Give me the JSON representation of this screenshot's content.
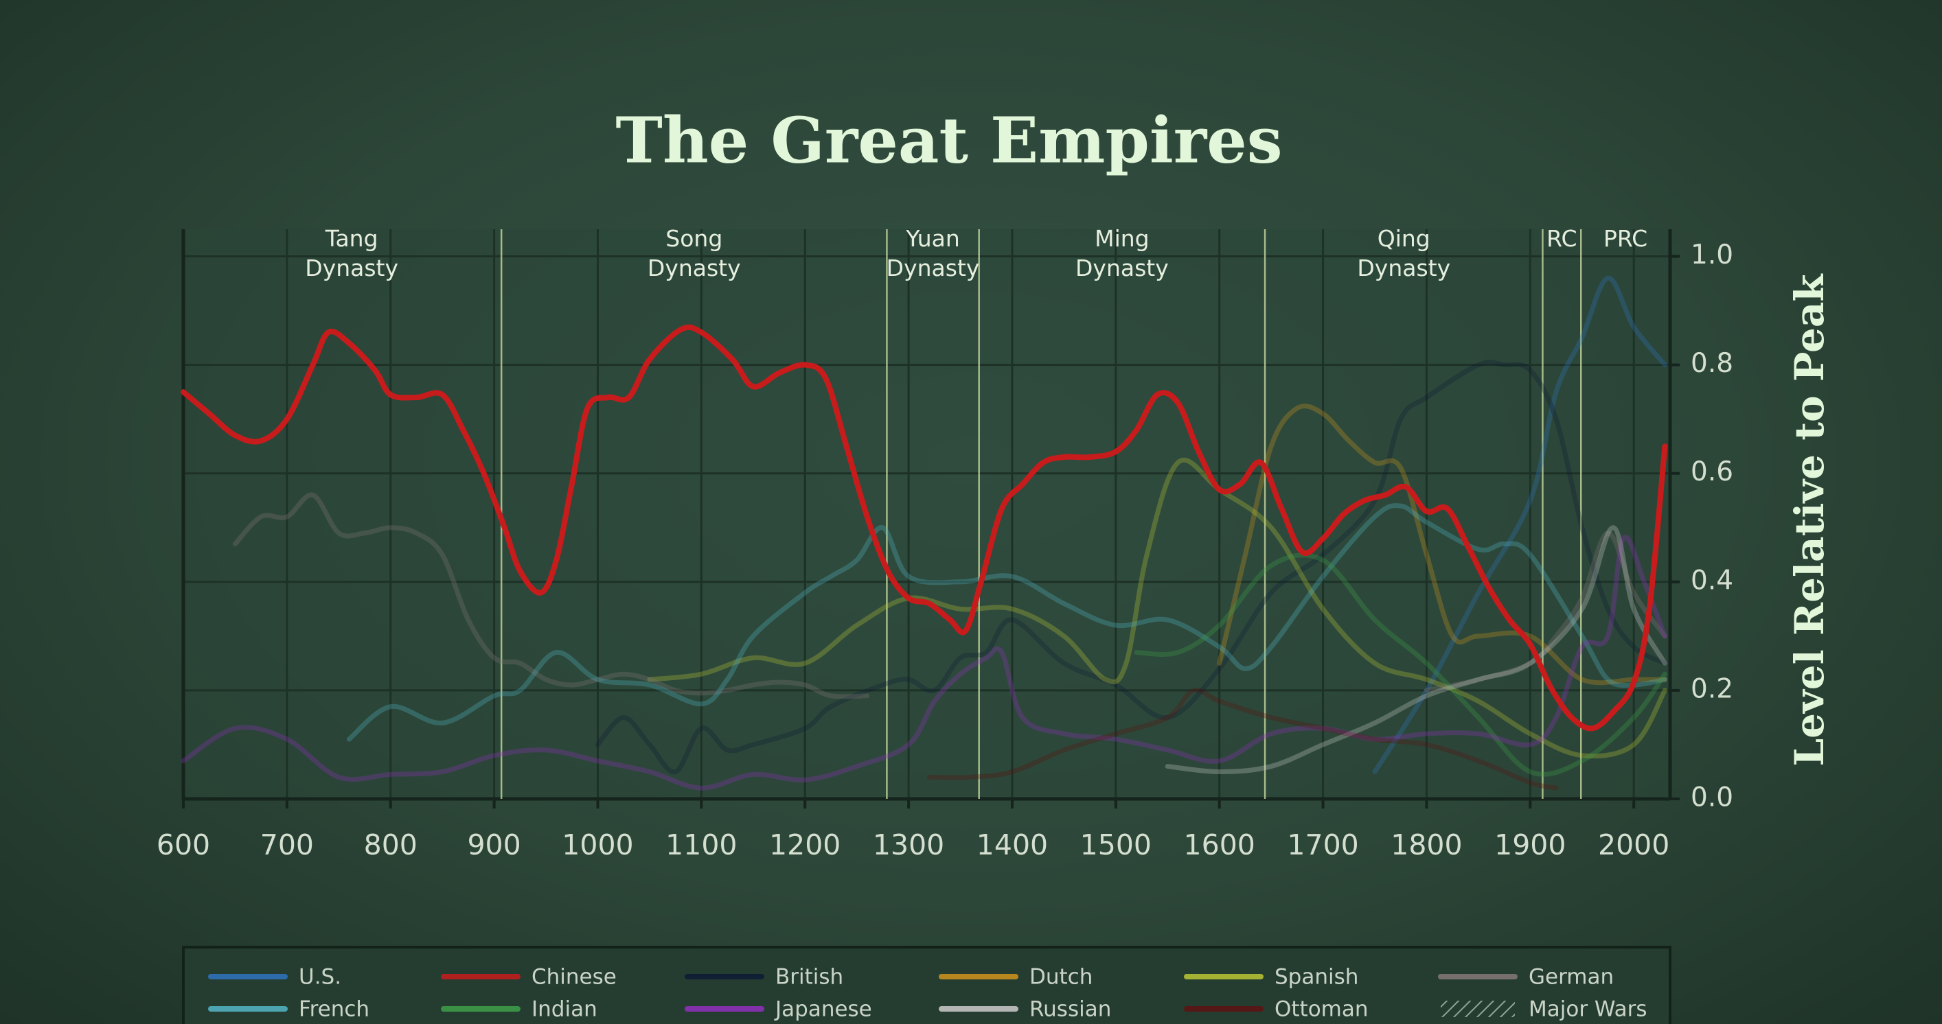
{
  "chart_data": {
    "type": "line",
    "title": "The Great Empires",
    "y_label": "Level Relative to Peak",
    "xlim": [
      600,
      2035
    ],
    "ylim": [
      0,
      1.05
    ],
    "xticks": [
      600,
      700,
      800,
      900,
      1000,
      1100,
      1200,
      1300,
      1400,
      1500,
      1600,
      1700,
      1800,
      1900,
      2000
    ],
    "yticks": [
      {
        "value": 0,
        "label": "0.0"
      },
      0.2,
      0.4,
      0.6,
      0.8,
      {
        "value": 1,
        "label": "1.0"
      }
    ],
    "grid": true,
    "highlight": "Chinese",
    "eras": [
      {
        "label": "Tang Dynasty",
        "start": 618
      },
      {
        "label": "Song Dynasty",
        "start": 907
      },
      {
        "label": "Yuan Dynasty",
        "start": 1279
      },
      {
        "label": "Ming Dynasty",
        "start": 1368
      },
      {
        "label": "Qing Dynasty",
        "start": 1644
      },
      {
        "label": "RC",
        "start": 1912
      },
      {
        "label": "PRC",
        "start": 1949
      }
    ],
    "series": [
      {
        "name": "U.S.",
        "color": "#2f74c0",
        "x": [
          1750,
          1800,
          1850,
          1900,
          1925,
          1950,
          1975,
          2000,
          2030
        ],
        "values": [
          0.05,
          0.2,
          0.38,
          0.55,
          0.75,
          0.85,
          0.96,
          0.87,
          0.8
        ]
      },
      {
        "name": "Chinese",
        "color": "#c81c1c",
        "x": [
          600,
          625,
          650,
          675,
          700,
          725,
          740,
          760,
          785,
          800,
          825,
          850,
          870,
          890,
          910,
          925,
          945,
          960,
          975,
          990,
          1010,
          1030,
          1050,
          1080,
          1100,
          1130,
          1150,
          1175,
          1200,
          1220,
          1240,
          1260,
          1280,
          1300,
          1320,
          1340,
          1355,
          1370,
          1390,
          1410,
          1430,
          1450,
          1475,
          1500,
          1520,
          1540,
          1560,
          1580,
          1600,
          1620,
          1640,
          1660,
          1680,
          1700,
          1720,
          1740,
          1760,
          1780,
          1800,
          1820,
          1840,
          1860,
          1880,
          1900,
          1920,
          1940,
          1960,
          1980,
          2000,
          2015,
          2030
        ],
        "values": [
          0.75,
          0.71,
          0.67,
          0.66,
          0.7,
          0.8,
          0.86,
          0.84,
          0.79,
          0.745,
          0.74,
          0.745,
          0.68,
          0.6,
          0.5,
          0.42,
          0.38,
          0.44,
          0.58,
          0.72,
          0.74,
          0.74,
          0.81,
          0.865,
          0.86,
          0.81,
          0.76,
          0.785,
          0.8,
          0.775,
          0.65,
          0.52,
          0.42,
          0.37,
          0.36,
          0.33,
          0.31,
          0.4,
          0.535,
          0.58,
          0.62,
          0.63,
          0.63,
          0.64,
          0.68,
          0.745,
          0.73,
          0.64,
          0.57,
          0.58,
          0.62,
          0.535,
          0.455,
          0.48,
          0.525,
          0.55,
          0.56,
          0.575,
          0.53,
          0.535,
          0.465,
          0.39,
          0.33,
          0.285,
          0.205,
          0.15,
          0.13,
          0.16,
          0.215,
          0.35,
          0.65
        ]
      },
      {
        "name": "British",
        "color": "#0e1a36",
        "x": [
          1000,
          1025,
          1050,
          1075,
          1100,
          1125,
          1150,
          1200,
          1225,
          1275,
          1300,
          1325,
          1350,
          1375,
          1400,
          1450,
          1500,
          1550,
          1600,
          1650,
          1700,
          1750,
          1775,
          1800,
          1850,
          1875,
          1900,
          1925,
          1950,
          1975,
          2000,
          2030
        ],
        "values": [
          0.1,
          0.15,
          0.1,
          0.05,
          0.13,
          0.09,
          0.1,
          0.13,
          0.17,
          0.21,
          0.22,
          0.2,
          0.26,
          0.27,
          0.33,
          0.25,
          0.21,
          0.15,
          0.24,
          0.38,
          0.45,
          0.55,
          0.7,
          0.74,
          0.8,
          0.8,
          0.79,
          0.7,
          0.5,
          0.35,
          0.28,
          0.25
        ]
      },
      {
        "name": "Dutch",
        "color": "#d0951c",
        "x": [
          1600,
          1625,
          1650,
          1675,
          1700,
          1725,
          1750,
          1775,
          1800,
          1825,
          1850,
          1900,
          1950,
          2000,
          2030
        ],
        "values": [
          0.25,
          0.45,
          0.65,
          0.72,
          0.71,
          0.66,
          0.62,
          0.61,
          0.45,
          0.3,
          0.3,
          0.3,
          0.22,
          0.22,
          0.22
        ]
      },
      {
        "name": "Spanish",
        "color": "#bcc634",
        "x": [
          1050,
          1100,
          1150,
          1200,
          1250,
          1300,
          1350,
          1400,
          1450,
          1490,
          1510,
          1530,
          1560,
          1600,
          1650,
          1700,
          1750,
          1800,
          1850,
          1900,
          1950,
          2000,
          2030
        ],
        "values": [
          0.22,
          0.23,
          0.26,
          0.25,
          0.32,
          0.37,
          0.35,
          0.35,
          0.3,
          0.22,
          0.25,
          0.45,
          0.62,
          0.57,
          0.5,
          0.35,
          0.25,
          0.22,
          0.18,
          0.12,
          0.08,
          0.1,
          0.2
        ]
      },
      {
        "name": "German",
        "color": "#857878",
        "x": [
          650,
          675,
          700,
          725,
          750,
          775,
          800,
          825,
          850,
          875,
          900,
          925,
          950,
          975,
          1000,
          1025,
          1050,
          1075,
          1100,
          1125,
          1150,
          1175,
          1200,
          1225,
          1260,
          1500,
          1800,
          1850,
          1900,
          1925,
          1950,
          1975,
          2000,
          2030
        ],
        "values": [
          0.47,
          0.52,
          0.52,
          0.56,
          0.49,
          0.49,
          0.5,
          0.49,
          0.45,
          0.33,
          0.26,
          0.25,
          0.22,
          0.21,
          0.22,
          0.23,
          0.22,
          0.2,
          0.195,
          0.2,
          0.21,
          0.215,
          0.21,
          0.19,
          0.19,
          null,
          0.2,
          0.22,
          0.25,
          0.3,
          0.37,
          0.49,
          0.38,
          0.3
        ]
      },
      {
        "name": "French",
        "color": "#52b6c6",
        "x": [
          760,
          800,
          850,
          900,
          925,
          960,
          1000,
          1050,
          1100,
          1125,
          1150,
          1200,
          1225,
          1250,
          1275,
          1300,
          1350,
          1400,
          1450,
          1500,
          1550,
          1600,
          1625,
          1650,
          1700,
          1750,
          1775,
          1800,
          1850,
          1875,
          1900,
          1950,
          1975,
          2000,
          2030
        ],
        "values": [
          0.11,
          0.17,
          0.14,
          0.19,
          0.2,
          0.27,
          0.22,
          0.21,
          0.175,
          0.22,
          0.3,
          0.38,
          0.41,
          0.44,
          0.5,
          0.41,
          0.4,
          0.41,
          0.36,
          0.32,
          0.33,
          0.28,
          0.24,
          0.28,
          0.41,
          0.52,
          0.54,
          0.51,
          0.46,
          0.47,
          0.45,
          0.3,
          0.22,
          0.21,
          0.22
        ]
      },
      {
        "name": "Indian",
        "color": "#3ea04a",
        "x": [
          1520,
          1560,
          1600,
          1650,
          1700,
          1750,
          1800,
          1850,
          1900,
          1950,
          2000,
          2030
        ],
        "values": [
          0.27,
          0.27,
          0.32,
          0.43,
          0.44,
          0.33,
          0.25,
          0.15,
          0.05,
          0.07,
          0.15,
          0.23
        ]
      },
      {
        "name": "Japanese",
        "color": "#9230c0",
        "x": [
          600,
          650,
          700,
          750,
          800,
          850,
          900,
          950,
          1000,
          1050,
          1100,
          1150,
          1200,
          1250,
          1300,
          1325,
          1350,
          1375,
          1390,
          1410,
          1450,
          1500,
          1550,
          1600,
          1650,
          1700,
          1750,
          1800,
          1850,
          1900,
          1925,
          1950,
          1975,
          1990,
          2010,
          2030
        ],
        "values": [
          0.07,
          0.13,
          0.11,
          0.04,
          0.045,
          0.05,
          0.08,
          0.09,
          0.07,
          0.05,
          0.02,
          0.045,
          0.035,
          0.06,
          0.1,
          0.18,
          0.23,
          0.26,
          0.27,
          0.15,
          0.12,
          0.11,
          0.09,
          0.07,
          0.12,
          0.13,
          0.11,
          0.12,
          0.12,
          0.1,
          0.15,
          0.28,
          0.3,
          0.48,
          0.4,
          0.3
        ]
      },
      {
        "name": "Russian",
        "color": "#cccccc",
        "x": [
          1550,
          1600,
          1650,
          1700,
          1750,
          1800,
          1850,
          1900,
          1950,
          1980,
          2000,
          2030
        ],
        "values": [
          0.06,
          0.05,
          0.06,
          0.1,
          0.14,
          0.19,
          0.22,
          0.25,
          0.35,
          0.5,
          0.35,
          0.25
        ]
      },
      {
        "name": "Ottoman",
        "color": "#5e1212",
        "x": [
          1320,
          1360,
          1400,
          1450,
          1500,
          1550,
          1575,
          1600,
          1650,
          1700,
          1750,
          1800,
          1850,
          1900,
          1925
        ],
        "values": [
          0.04,
          0.04,
          0.05,
          0.09,
          0.12,
          0.15,
          0.2,
          0.18,
          0.15,
          0.13,
          0.11,
          0.1,
          0.07,
          0.03,
          0.02
        ]
      }
    ],
    "overlays": [
      {
        "name": "Major Wars",
        "pattern": "hatch"
      }
    ]
  }
}
